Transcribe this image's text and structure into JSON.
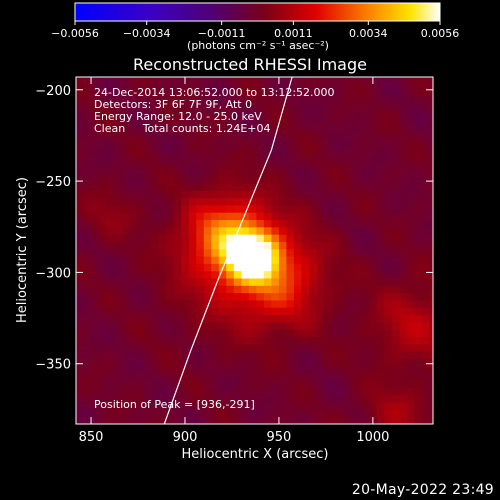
{
  "chart_data": {
    "type": "heatmap",
    "title": "Reconstructed RHESSI Image",
    "xlabel": "Heliocentric X (arcsec)",
    "ylabel": "Heliocentric Y (arcsec)",
    "xlim": [
      842,
      1032
    ],
    "ylim": [
      -383,
      -193
    ],
    "x_ticks": [
      850,
      900,
      950,
      1000
    ],
    "x_tick_labels": [
      "850",
      "900",
      "950",
      "1000"
    ],
    "y_ticks": [
      -200,
      -250,
      -300,
      -350
    ],
    "y_tick_labels": [
      "−200",
      "−250",
      "−300",
      "−350"
    ],
    "colormap": "IDL red-temperature (blue → purple → red → yellow → white)",
    "colorbar": {
      "range": [
        -0.0056,
        0.0056
      ],
      "ticks": [
        -0.0056,
        -0.0034,
        -0.0011,
        0.0011,
        0.0034,
        0.0056
      ],
      "tick_labels": [
        "−0.0056",
        "−0.0034",
        "−0.0011",
        "0.0011",
        "0.0034",
        "0.0056"
      ],
      "label": "(photons cm⁻² s⁻¹ asec⁻²)"
    },
    "annotations": [
      "24-Dec-2014 13:06:52.000 to 13:12:52.000",
      "Detectors: 3F 6F 7F 9F, Att 0",
      "Energy Range: 12.0 - 25.0 keV",
      "Clean     Total counts: 1.24E+04"
    ],
    "peak_label": "Position of Peak = [936,-291]",
    "peak": {
      "x": 936,
      "y": -291,
      "value": 0.0056
    },
    "sources": [
      {
        "x": 936,
        "y": -291,
        "amp": 0.0056,
        "sigma": 9
      },
      {
        "x": 922,
        "y": -280,
        "amp": 0.0028,
        "sigma": 14
      },
      {
        "x": 950,
        "y": -305,
        "amp": 0.0018,
        "sigma": 16
      },
      {
        "x": 930,
        "y": -295,
        "amp": 0.0014,
        "sigma": 24
      },
      {
        "x": 1022,
        "y": -328,
        "amp": 0.0012,
        "sigma": 16
      },
      {
        "x": 1012,
        "y": -378,
        "amp": 0.0009,
        "sigma": 12
      },
      {
        "x": 860,
        "y": -268,
        "amp": 0.0006,
        "sigma": 10
      }
    ],
    "limb_curve": [
      [
        889,
        -383
      ],
      [
        903,
        -343
      ],
      [
        918,
        -303
      ],
      [
        934,
        -263
      ],
      [
        946,
        -233
      ],
      [
        957,
        -193
      ]
    ],
    "pixel_size": 4,
    "grid": false,
    "legend": "none"
  },
  "footer": {
    "date": "20-May-2022 23:49"
  }
}
